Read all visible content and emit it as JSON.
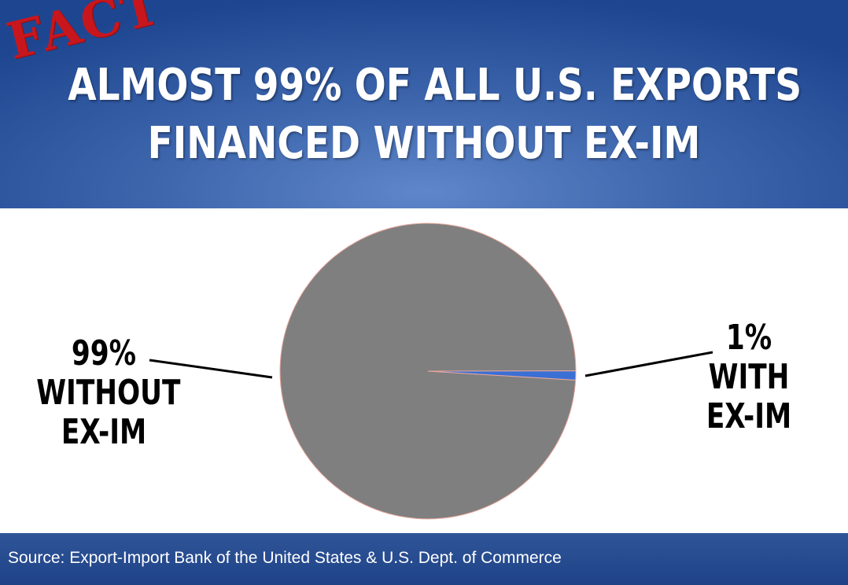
{
  "stamp": "FACT",
  "title": {
    "line1": "ALMOST 99% OF ALL U.S. EXPORTS",
    "line2": "FINANCED WITHOUT EX-IM"
  },
  "colors": {
    "without": "#7f7f7f",
    "with": "#3b6fd4",
    "slice_outline": "#e8a79c",
    "stamp": "#c8161d"
  },
  "chart_data": {
    "type": "pie",
    "slices": [
      {
        "label_lines": [
          "99%",
          "WITHOUT",
          "EX-IM"
        ],
        "value": 99
      },
      {
        "label_lines": [
          "1%",
          "WITH",
          "EX-IM"
        ],
        "value": 1
      }
    ],
    "legend": "none"
  },
  "footer": {
    "source": "Source: Export-Import Bank of the United States & U.S. Dept. of Commerce"
  }
}
